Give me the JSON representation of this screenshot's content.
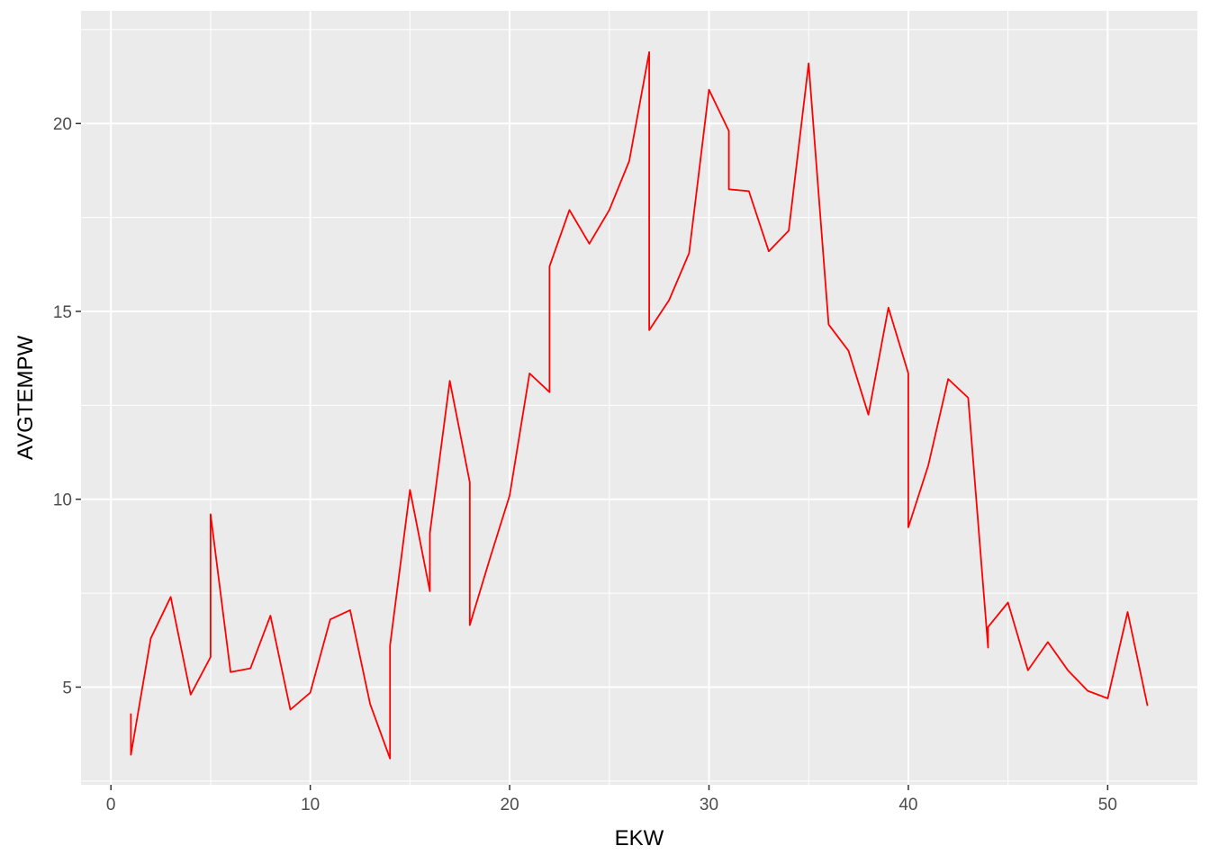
{
  "chart_data": {
    "type": "line",
    "title": "",
    "xlabel": "EKW",
    "ylabel": "AVGTEMPW",
    "xlim": [
      -1.5,
      54.5
    ],
    "ylim": [
      2.4,
      23.0
    ],
    "x_ticks": [
      0,
      10,
      20,
      30,
      40,
      50
    ],
    "x_tick_labels": [
      "0",
      "10",
      "20",
      "30",
      "40",
      "50"
    ],
    "y_ticks": [
      5,
      10,
      15,
      20
    ],
    "y_tick_labels": [
      "5",
      "10",
      "15",
      "20"
    ],
    "grid": true,
    "background": "#ebebeb",
    "grid_color": "#ffffff",
    "series": [
      {
        "color": "#ff0000",
        "points": [
          [
            1,
            4.3
          ],
          [
            1,
            3.2
          ],
          [
            2,
            6.3
          ],
          [
            3,
            7.4
          ],
          [
            4,
            4.8
          ],
          [
            5,
            5.8
          ],
          [
            5,
            9.6
          ],
          [
            6,
            5.4
          ],
          [
            7,
            5.5
          ],
          [
            8,
            6.9
          ],
          [
            9,
            4.4
          ],
          [
            10,
            4.85
          ],
          [
            11,
            6.8
          ],
          [
            12,
            7.05
          ],
          [
            13,
            4.55
          ],
          [
            14,
            3.1
          ],
          [
            14,
            6.1
          ],
          [
            15,
            10.25
          ],
          [
            16,
            7.55
          ],
          [
            16,
            9.1
          ],
          [
            17,
            13.15
          ],
          [
            18,
            10.45
          ],
          [
            18,
            6.65
          ],
          [
            19,
            8.4
          ],
          [
            20,
            10.1
          ],
          [
            21,
            13.35
          ],
          [
            22,
            12.85
          ],
          [
            22,
            16.2
          ],
          [
            23,
            17.7
          ],
          [
            24,
            16.8
          ],
          [
            25,
            17.7
          ],
          [
            26,
            19.0
          ],
          [
            27,
            21.9
          ],
          [
            27,
            14.5
          ],
          [
            28,
            15.3
          ],
          [
            29,
            16.55
          ],
          [
            30,
            20.9
          ],
          [
            31,
            19.8
          ],
          [
            31,
            18.25
          ],
          [
            32,
            18.2
          ],
          [
            33,
            16.6
          ],
          [
            34,
            17.15
          ],
          [
            35,
            21.6
          ],
          [
            36,
            14.65
          ],
          [
            37,
            13.95
          ],
          [
            38,
            12.25
          ],
          [
            39,
            15.1
          ],
          [
            40,
            13.35
          ],
          [
            40,
            9.25
          ],
          [
            41,
            10.9
          ],
          [
            42,
            13.2
          ],
          [
            43,
            12.7
          ],
          [
            44,
            6.05
          ],
          [
            44,
            6.6
          ],
          [
            45,
            7.25
          ],
          [
            46,
            5.45
          ],
          [
            47,
            6.2
          ],
          [
            48,
            5.45
          ],
          [
            49,
            4.9
          ],
          [
            50,
            4.7
          ],
          [
            51,
            7.0
          ],
          [
            52,
            4.5
          ]
        ]
      }
    ]
  }
}
